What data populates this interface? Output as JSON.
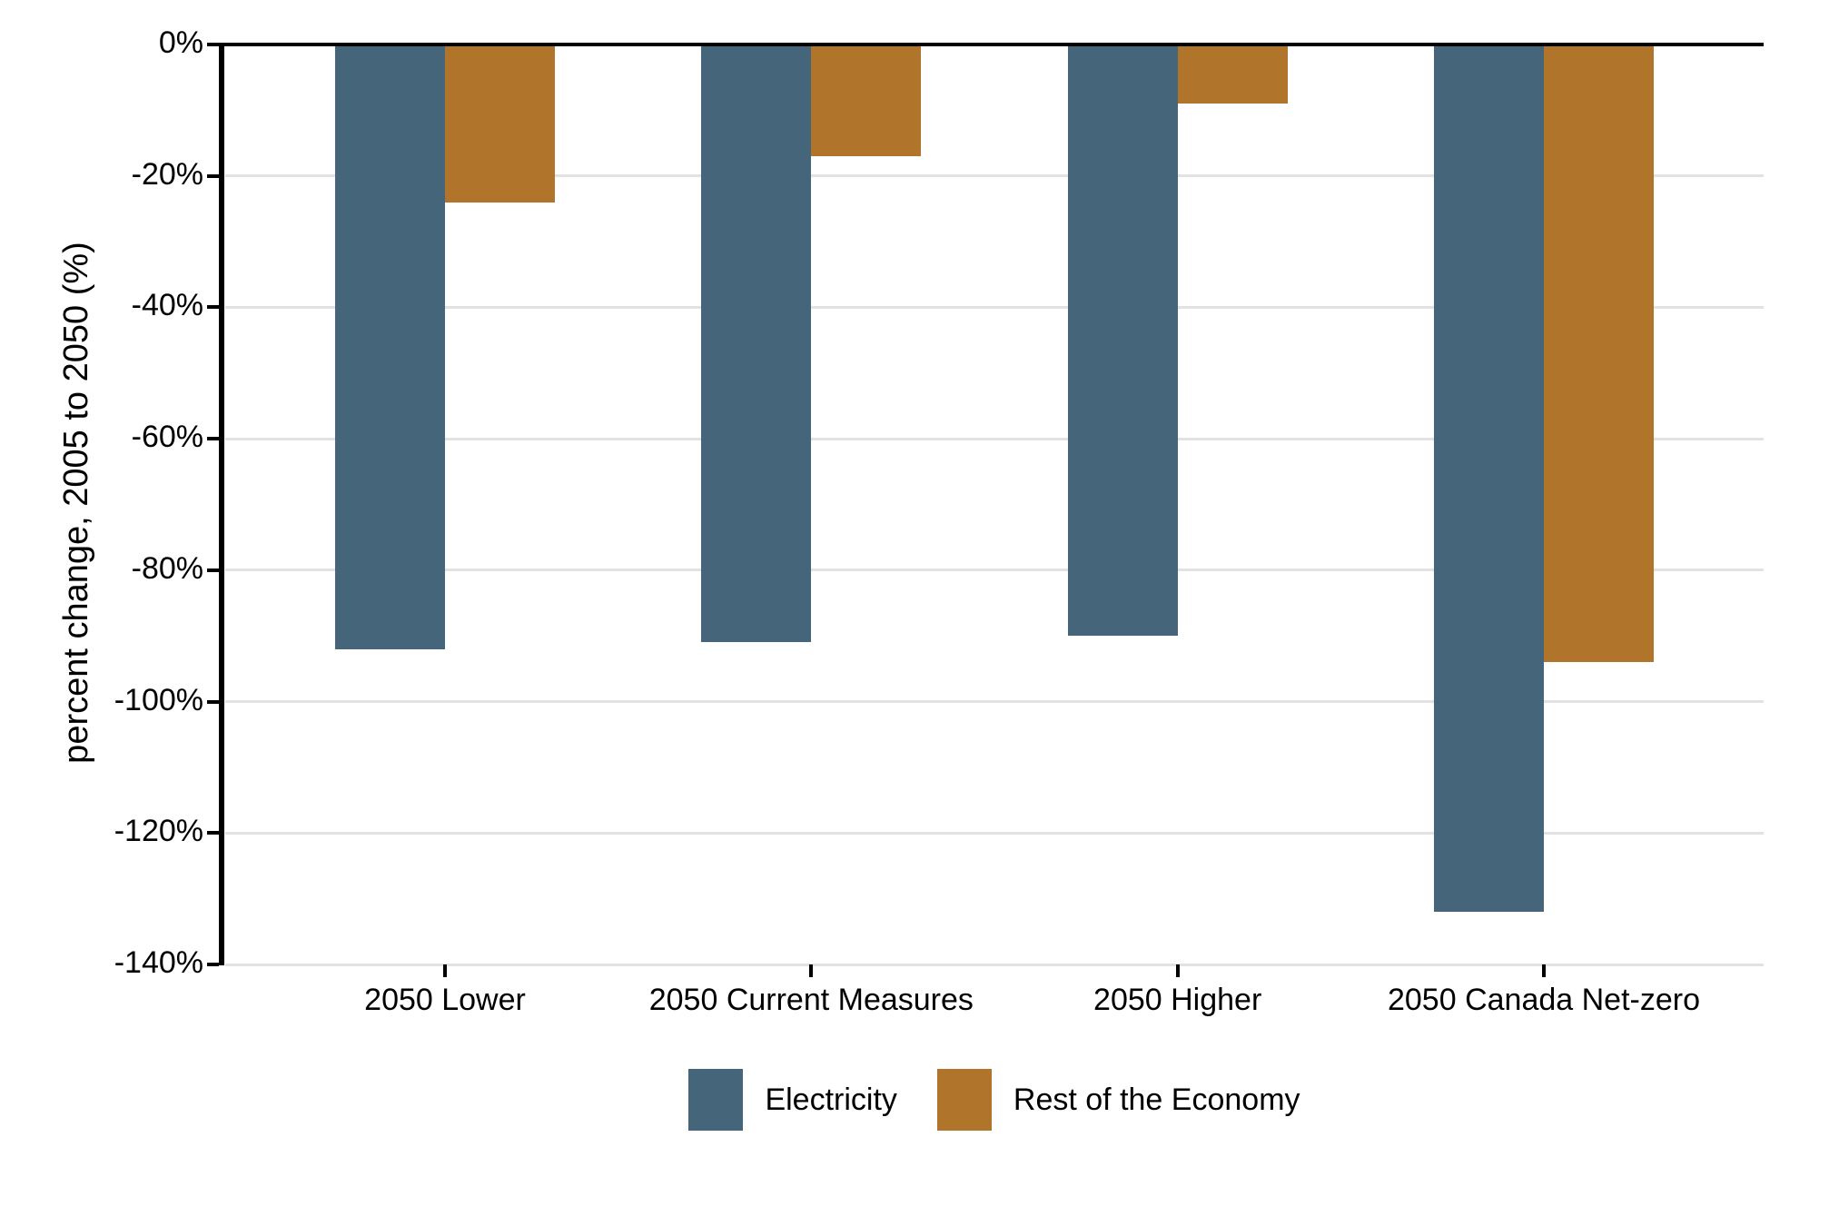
{
  "chart_data": {
    "type": "bar",
    "title": "",
    "categories": [
      "2050 Lower",
      "2050 Current Measures",
      "2050 Higher",
      "2050 Canada Net-zero"
    ],
    "series": [
      {
        "name": "Electricity",
        "color": "#45657A",
        "values": [
          -92,
          -91,
          -90,
          -132
        ]
      },
      {
        "name": "Rest of the Economy",
        "color": "#B0752B",
        "values": [
          -24,
          -17,
          -9,
          -94
        ]
      }
    ],
    "xlabel": "",
    "ylabel": "percent change, 2005 to 2050 (%)",
    "ylim": [
      -140,
      0
    ],
    "yticks": [
      0,
      -20,
      -40,
      -60,
      -80,
      -100,
      -120,
      -140
    ],
    "ytick_labels": [
      "0%",
      "-20%",
      "-40%",
      "-60%",
      "-80%",
      "-100%",
      "-120%",
      "-140%"
    ],
    "grid": true,
    "legend_position": "bottom",
    "axis_color": "#000000",
    "grid_color": "#E2E2E2",
    "background": "#FFFFFF"
  }
}
